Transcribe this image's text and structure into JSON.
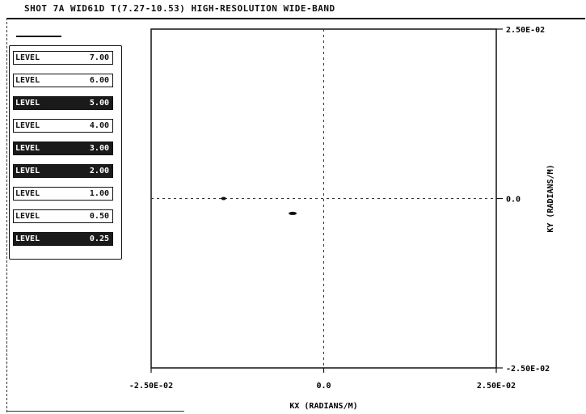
{
  "header": {
    "title": "SHOT 7A  WID61D  T(7.27-10.53)  HIGH-RESOLUTION WIDE-BAND"
  },
  "legend": {
    "items": [
      {
        "label": "LEVEL",
        "value": "7.00",
        "style": "light"
      },
      {
        "label": "LEVEL",
        "value": "6.00",
        "style": "light"
      },
      {
        "label": "LEVEL",
        "value": "5.00",
        "style": "dark"
      },
      {
        "label": "LEVEL",
        "value": "4.00",
        "style": "light"
      },
      {
        "label": "LEVEL",
        "value": "3.00",
        "style": "dark"
      },
      {
        "label": "LEVEL",
        "value": "2.00",
        "style": "dark"
      },
      {
        "label": "LEVEL",
        "value": "1.00",
        "style": "light"
      },
      {
        "label": "LEVEL",
        "value": "0.50",
        "style": "light"
      },
      {
        "label": "LEVEL",
        "value": "0.25",
        "style": "dark"
      }
    ]
  },
  "chart_data": {
    "type": "scatter",
    "title": "SHOT 7A  WID61D  T(7.27-10.53)  HIGH-RESOLUTION WIDE-BAND",
    "xlabel": "KX (RADIANS/M)",
    "ylabel": "KY (RADIANS/M)",
    "xlim": [
      -0.025,
      0.025
    ],
    "ylim": [
      -0.025,
      0.025
    ],
    "x_ticks": [
      "-2.50E-02",
      "0.0",
      "2.50E-02"
    ],
    "y_ticks": [
      "2.50E-02",
      "0.0",
      "-2.50E-02"
    ],
    "grid": "dashed zero lines",
    "series": [
      {
        "x": [
          -0.0145,
          -0.0045
        ],
        "y": [
          0.0,
          -0.0022
        ]
      }
    ]
  }
}
